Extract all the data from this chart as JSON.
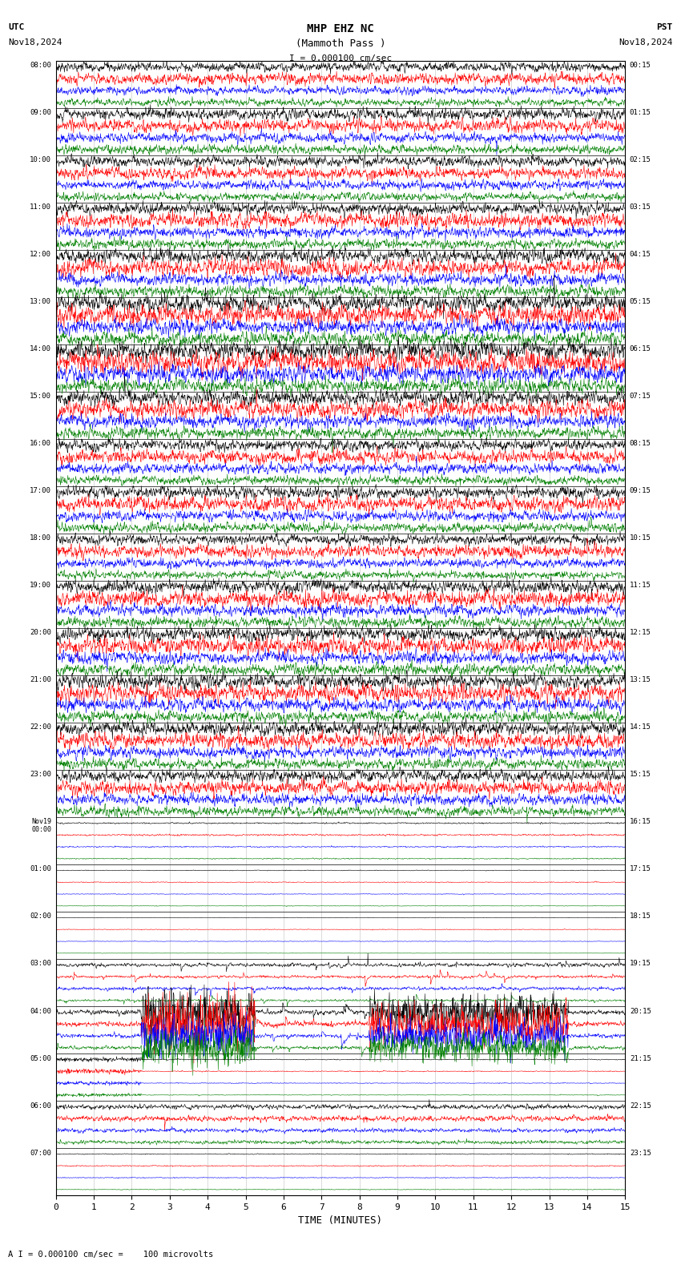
{
  "title_line1": "MHP EHZ NC",
  "title_line2": "(Mammoth Pass )",
  "scale_text": "I = 0.000100 cm/sec",
  "utc_label": "UTC",
  "utc_date": "Nov18,2024",
  "pst_label": "PST",
  "pst_date": "Nov18,2024",
  "xlabel": "TIME (MINUTES)",
  "footer_text": "A I = 0.000100 cm/sec =    100 microvolts",
  "x_ticks": [
    0,
    1,
    2,
    3,
    4,
    5,
    6,
    7,
    8,
    9,
    10,
    11,
    12,
    13,
    14,
    15
  ],
  "background_color": "#ffffff",
  "grid_color": "#cccccc",
  "trace_colors": [
    "black",
    "red",
    "blue",
    "green"
  ],
  "left_labels_utc": [
    "08:00",
    "09:00",
    "10:00",
    "11:00",
    "12:00",
    "13:00",
    "14:00",
    "15:00",
    "16:00",
    "17:00",
    "18:00",
    "19:00",
    "20:00",
    "21:00",
    "22:00",
    "23:00",
    "Nov19\n00:00",
    "01:00",
    "02:00",
    "03:00",
    "04:00",
    "05:00",
    "06:00",
    "07:00"
  ],
  "right_labels_pst": [
    "00:15",
    "01:15",
    "02:15",
    "03:15",
    "04:15",
    "05:15",
    "06:15",
    "07:15",
    "08:15",
    "09:15",
    "10:15",
    "11:15",
    "12:15",
    "13:15",
    "14:15",
    "15:15",
    "16:15",
    "17:15",
    "18:15",
    "19:15",
    "20:15",
    "21:15",
    "22:15",
    "23:15"
  ],
  "n_rows": 24,
  "traces_per_row": 4,
  "noise_seed": 42,
  "figsize": [
    8.5,
    15.84
  ],
  "dpi": 100,
  "row_amplitude_scale": [
    1.0,
    1.2,
    1.1,
    1.3,
    1.5,
    1.8,
    2.0,
    1.6,
    1.2,
    1.3,
    1.1,
    1.4,
    1.5,
    1.6,
    1.4,
    1.3,
    0.15,
    0.08,
    0.06,
    0.5,
    4.0,
    0.3,
    0.5,
    0.1
  ],
  "trace_amplitude_scale": [
    1.0,
    1.2,
    0.9,
    0.8
  ]
}
